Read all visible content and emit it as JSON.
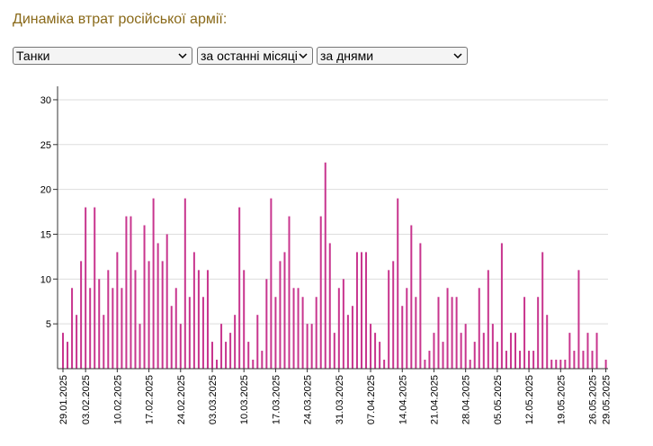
{
  "header": {
    "title": "Динаміка втрат російської армії:"
  },
  "controls": {
    "type_select": {
      "value": "Танки"
    },
    "period_select": {
      "value": "за останні місяці"
    },
    "grouping_select": {
      "value": "за днями"
    }
  },
  "colors": {
    "bar": "#c8358e",
    "grid": "#dddddd",
    "axis": "#333333",
    "title": "#8a6a1a"
  },
  "chart_data": {
    "type": "bar",
    "title": "",
    "xlabel": "",
    "ylabel": "",
    "ylim": [
      0,
      31.5
    ],
    "yticks": [
      5,
      10,
      15,
      20,
      25,
      30
    ],
    "grid": true,
    "start_date": "29.01.2025",
    "tick_labels": [
      "29.01.2025",
      "03.02.2025",
      "10.02.2025",
      "17.02.2025",
      "24.02.2025",
      "03.03.2025",
      "10.03.2025",
      "17.03.2025",
      "24.03.2025",
      "31.03.2025",
      "07.04.2025",
      "14.04.2025",
      "21.04.2025",
      "28.04.2025",
      "05.05.2025",
      "12.05.2025",
      "19.05.2025",
      "26.05.2025",
      "29.05.2025"
    ],
    "categories": [
      "29.01",
      "30.01",
      "31.01",
      "01.02",
      "02.02",
      "03.02",
      "04.02",
      "05.02",
      "06.02",
      "07.02",
      "08.02",
      "09.02",
      "10.02",
      "11.02",
      "12.02",
      "13.02",
      "14.02",
      "15.02",
      "16.02",
      "17.02",
      "18.02",
      "19.02",
      "20.02",
      "21.02",
      "22.02",
      "23.02",
      "24.02",
      "25.02",
      "26.02",
      "27.02",
      "28.02",
      "01.03",
      "02.03",
      "03.03",
      "04.03",
      "05.03",
      "06.03",
      "07.03",
      "08.03",
      "09.03",
      "10.03",
      "11.03",
      "12.03",
      "13.03",
      "14.03",
      "15.03",
      "16.03",
      "17.03",
      "18.03",
      "19.03",
      "20.03",
      "21.03",
      "22.03",
      "23.03",
      "24.03",
      "25.03",
      "26.03",
      "27.03",
      "28.03",
      "29.03",
      "30.03",
      "31.03",
      "01.04",
      "02.04",
      "03.04",
      "04.04",
      "05.04",
      "06.04",
      "07.04",
      "08.04",
      "09.04",
      "10.04",
      "11.04",
      "12.04",
      "13.04",
      "14.04",
      "15.04",
      "16.04",
      "17.04",
      "18.04",
      "19.04",
      "20.04",
      "21.04",
      "22.04",
      "23.04",
      "24.04",
      "25.04",
      "26.04",
      "27.04",
      "28.04",
      "29.04",
      "30.04",
      "01.05",
      "02.05",
      "03.05",
      "04.05",
      "05.05",
      "06.05",
      "07.05",
      "08.05",
      "09.05",
      "10.05",
      "11.05",
      "12.05",
      "13.05",
      "14.05",
      "15.05",
      "16.05",
      "17.05",
      "18.05",
      "19.05",
      "20.05",
      "21.05",
      "22.05",
      "23.05",
      "24.05",
      "25.05",
      "26.05",
      "27.05",
      "28.05",
      "29.05"
    ],
    "values": [
      4,
      3,
      9,
      6,
      12,
      18,
      9,
      18,
      10,
      6,
      11,
      9,
      13,
      9,
      17,
      17,
      11,
      5,
      16,
      12,
      19,
      14,
      12,
      15,
      7,
      9,
      5,
      19,
      8,
      13,
      11,
      8,
      11,
      3,
      1,
      5,
      3,
      4,
      6,
      18,
      11,
      3,
      1,
      6,
      2,
      10,
      19,
      8,
      12,
      13,
      17,
      9,
      9,
      8,
      5,
      5,
      8,
      17,
      23,
      14,
      4,
      9,
      10,
      6,
      7,
      13,
      13,
      13,
      5,
      4,
      3,
      1,
      11,
      12,
      19,
      7,
      9,
      16,
      8,
      14,
      1,
      2,
      4,
      8,
      3,
      9,
      8,
      8,
      4,
      5,
      1,
      3,
      9,
      4,
      11,
      5,
      3,
      14,
      2,
      4,
      4,
      2,
      8,
      2,
      2,
      8,
      13,
      6,
      1,
      1,
      1,
      1,
      4,
      2,
      11,
      2,
      4,
      2,
      4,
      0,
      1
    ]
  }
}
